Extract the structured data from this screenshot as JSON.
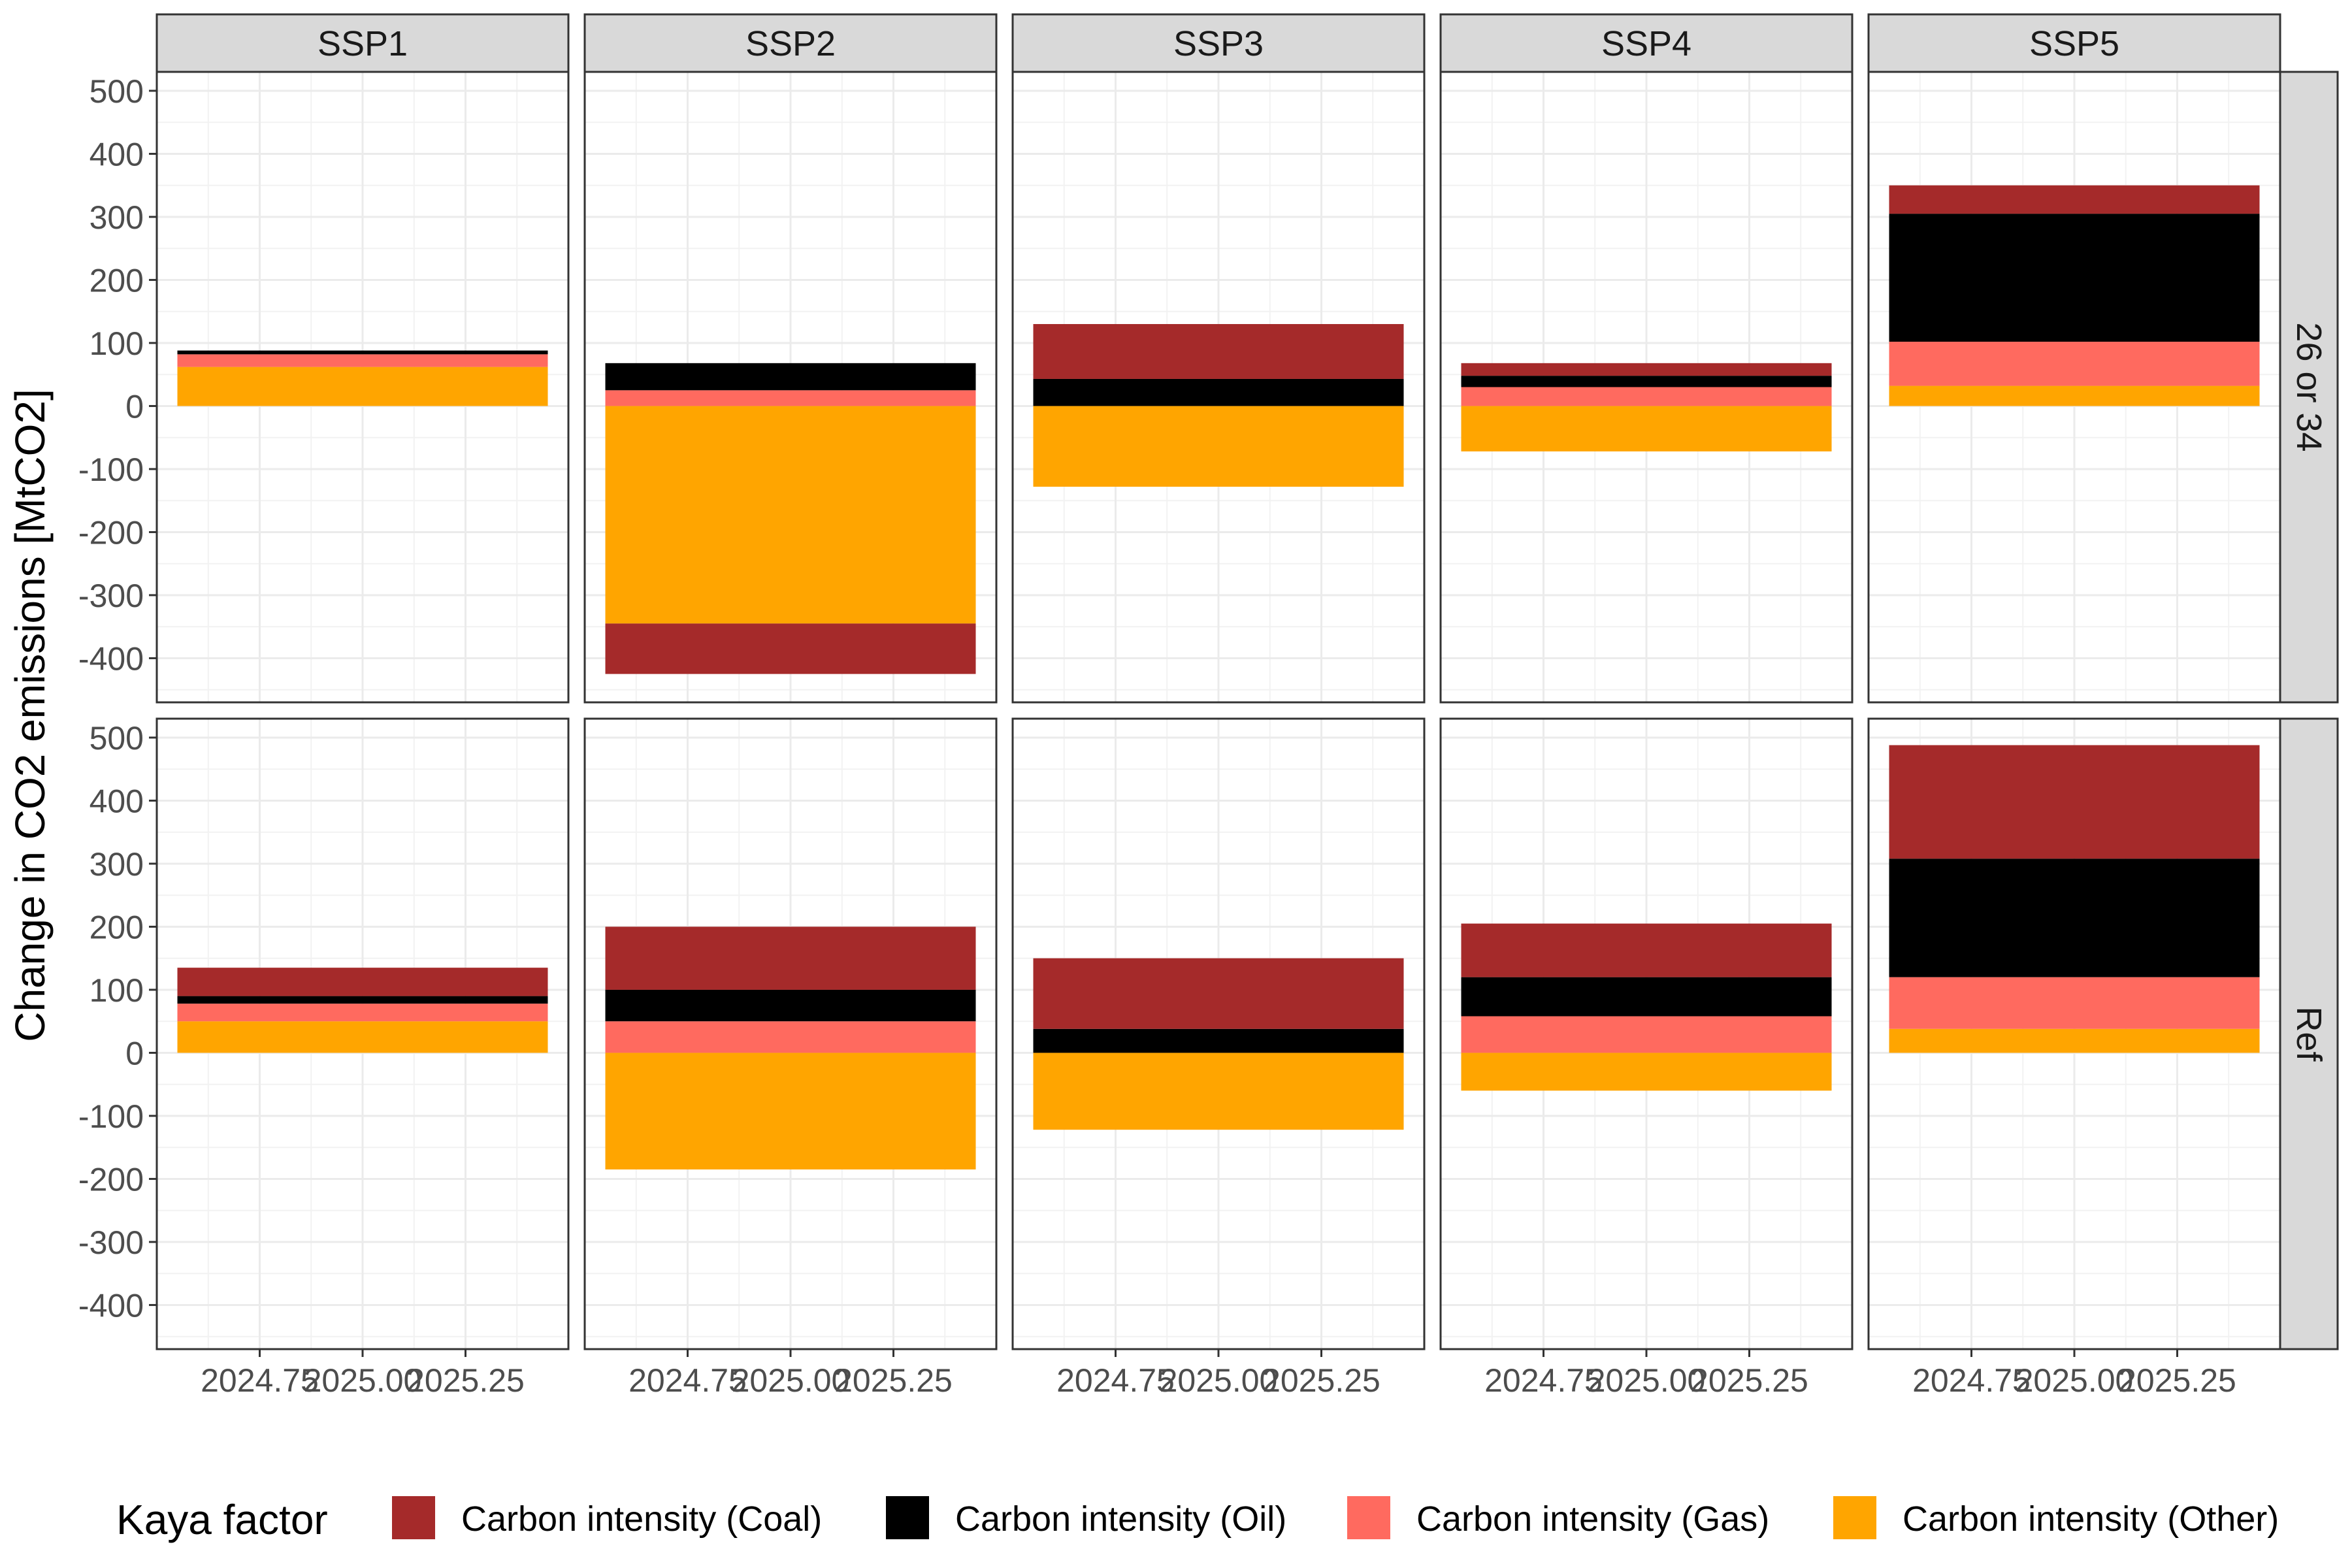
{
  "chart_data": {
    "type": "bar",
    "stacked": true,
    "facet_columns": [
      "SSP1",
      "SSP2",
      "SSP3",
      "SSP4",
      "SSP5"
    ],
    "facet_rows": [
      "26 or 34",
      "Ref"
    ],
    "ylabel": "Change in CO2 emissions [MtCO2]",
    "xlabel": "",
    "ylim": [
      -470,
      530
    ],
    "y_ticks": [
      500,
      400,
      300,
      200,
      100,
      0,
      -100,
      -200,
      -300,
      -400
    ],
    "xlim": [
      2024.5,
      2025.5
    ],
    "x_ticks": [
      2024.75,
      2025.0,
      2025.25
    ],
    "x_tick_labels": [
      "2024.75",
      "2025.00",
      "2025.25"
    ],
    "bar_x": 2025.0,
    "bar_width": 0.9,
    "grid": true,
    "legend": {
      "title": "Kaya factor",
      "position": "bottom",
      "entries": [
        {
          "name": "Carbon intensity (Coal)",
          "color": "#A52A2A"
        },
        {
          "name": "Carbon intensity (Oil)",
          "color": "#000000"
        },
        {
          "name": "Carbon intensity (Gas)",
          "color": "#FF6A5F"
        },
        {
          "name": "Carbon intensity (Other)",
          "color": "#FFA500"
        }
      ]
    },
    "panels": [
      {
        "row": "26 or 34",
        "col": "SSP1",
        "values": {
          "Coal": 0,
          "Oil": 6,
          "Gas": 20,
          "Other": 62
        }
      },
      {
        "row": "26 or 34",
        "col": "SSP2",
        "values": {
          "Coal": -80,
          "Oil": 43,
          "Gas": 25,
          "Other": -345
        }
      },
      {
        "row": "26 or 34",
        "col": "SSP3",
        "values": {
          "Coal": 87,
          "Oil": 43,
          "Gas": 0,
          "Other": -128
        }
      },
      {
        "row": "26 or 34",
        "col": "SSP4",
        "values": {
          "Coal": 20,
          "Oil": 18,
          "Gas": 30,
          "Other": -72
        }
      },
      {
        "row": "26 or 34",
        "col": "SSP5",
        "values": {
          "Coal": 45,
          "Oil": 203,
          "Gas": 70,
          "Other": 32
        }
      },
      {
        "row": "Ref",
        "col": "SSP1",
        "values": {
          "Coal": 45,
          "Oil": 12,
          "Gas": 28,
          "Other": 50
        }
      },
      {
        "row": "Ref",
        "col": "SSP2",
        "values": {
          "Coal": 100,
          "Oil": 50,
          "Gas": 50,
          "Other": -185
        }
      },
      {
        "row": "Ref",
        "col": "SSP3",
        "values": {
          "Coal": 112,
          "Oil": 38,
          "Gas": 0,
          "Other": -122
        }
      },
      {
        "row": "Ref",
        "col": "SSP4",
        "values": {
          "Coal": 85,
          "Oil": 62,
          "Gas": 58,
          "Other": -60
        }
      },
      {
        "row": "Ref",
        "col": "SSP5",
        "values": {
          "Coal": 180,
          "Oil": 188,
          "Gas": 82,
          "Other": 38
        }
      }
    ]
  }
}
